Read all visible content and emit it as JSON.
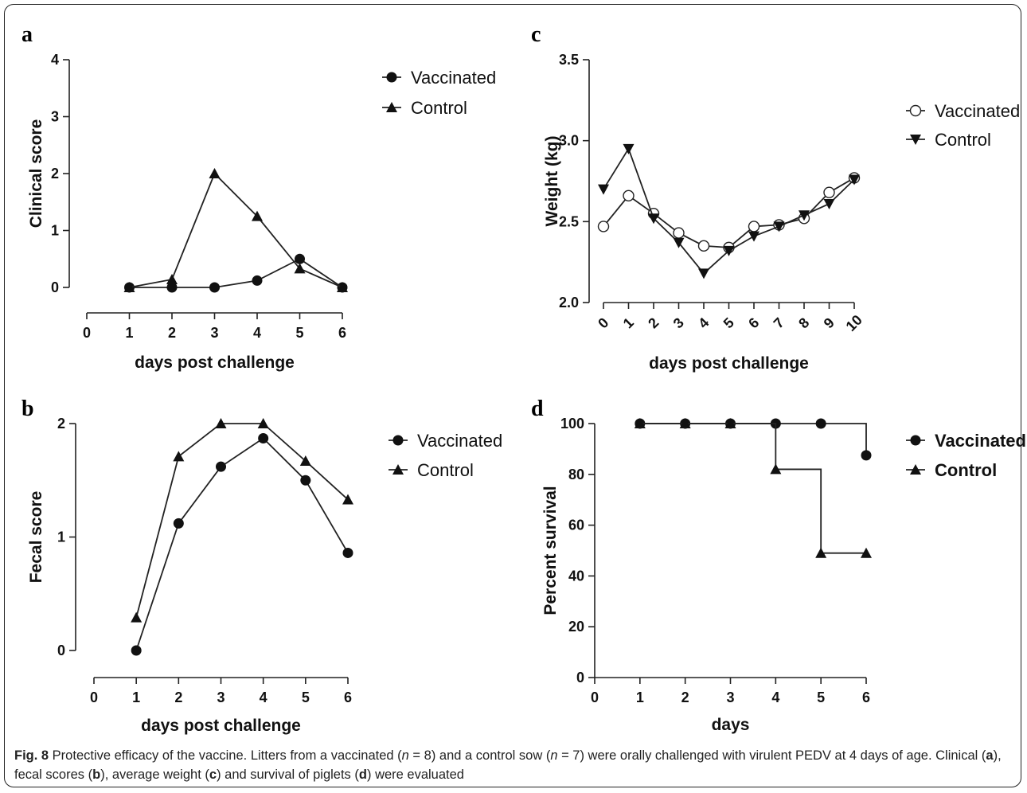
{
  "caption": {
    "fig_label": "Fig. 8",
    "p1": " Protective efficacy of the vaccine. Litters from a vaccinated (",
    "n1var": "n",
    "n1val": " = 8) and a control sow (",
    "n2var": "n",
    "n2val": " = 7) were orally challenged with virulent PEDV at 4 days of age. Clinical (",
    "a": "a",
    "p2": "), fecal scores (",
    "b": "b",
    "p3": "), average weight (",
    "c": "c",
    "p4": ") and survival of piglets (",
    "d": "d",
    "p5": ") were evaluated"
  },
  "chart_data": [
    {
      "panel": "a",
      "type": "line",
      "xlabel": "days post challenge",
      "ylabel": "Clinical score",
      "xlim": [
        0,
        6
      ],
      "ylim": [
        0,
        4
      ],
      "xticks": [
        "0",
        "1",
        "2",
        "3",
        "4",
        "5",
        "6"
      ],
      "yticks": [
        "0",
        "1",
        "2",
        "3",
        "4"
      ],
      "legend_position": "top-right",
      "legend_bold": false,
      "series": [
        {
          "name": "Vaccinated",
          "marker": "circle",
          "x": [
            1,
            2,
            3,
            4,
            5,
            6
          ],
          "values": [
            0,
            0,
            0,
            0.12,
            0.5,
            0
          ]
        },
        {
          "name": "Control",
          "marker": "triangle",
          "x": [
            1,
            2,
            3,
            4,
            5,
            6
          ],
          "values": [
            0,
            0.14,
            2.0,
            1.25,
            0.33,
            0
          ]
        }
      ]
    },
    {
      "panel": "b",
      "type": "line",
      "xlabel": "days post challenge",
      "ylabel": "Fecal score",
      "xlim": [
        0,
        6
      ],
      "ylim": [
        0,
        2
      ],
      "xticks": [
        "0",
        "1",
        "2",
        "3",
        "4",
        "5",
        "6"
      ],
      "yticks": [
        "0",
        "1",
        "2"
      ],
      "legend_position": "top-right",
      "legend_bold": false,
      "series": [
        {
          "name": "Vaccinated",
          "marker": "circle",
          "x": [
            1,
            2,
            3,
            4,
            5,
            6
          ],
          "values": [
            0,
            1.12,
            1.62,
            1.87,
            1.5,
            0.86
          ]
        },
        {
          "name": "Control",
          "marker": "triangle",
          "x": [
            1,
            2,
            3,
            4,
            5,
            6
          ],
          "values": [
            0.29,
            1.71,
            2.0,
            2.0,
            1.67,
            1.33
          ]
        }
      ]
    },
    {
      "panel": "c",
      "type": "line",
      "xlabel": "days post challenge",
      "ylabel": "Weight (kg)",
      "xlim": [
        0,
        10
      ],
      "ylim": [
        2.0,
        3.5
      ],
      "xticks": [
        "0",
        "1",
        "2",
        "3",
        "4",
        "5",
        "6",
        "7",
        "8",
        "9",
        "10"
      ],
      "yticks": [
        "2.0",
        "2.5",
        "3.0",
        "3.5"
      ],
      "rotated_xticks": true,
      "legend_position": "top-right",
      "legend_bold": false,
      "series": [
        {
          "name": "Vaccinated",
          "marker": "open-circle",
          "x": [
            0,
            1,
            2,
            3,
            4,
            5,
            6,
            7,
            8,
            9,
            10
          ],
          "values": [
            2.47,
            2.66,
            2.55,
            2.43,
            2.35,
            2.34,
            2.47,
            2.48,
            2.52,
            2.68,
            2.77
          ]
        },
        {
          "name": "Control",
          "marker": "triangle-down",
          "x": [
            0,
            1,
            2,
            3,
            4,
            5,
            6,
            7,
            8,
            9,
            10
          ],
          "values": [
            2.7,
            2.95,
            2.52,
            2.37,
            2.18,
            2.32,
            2.41,
            2.47,
            2.54,
            2.61,
            2.76
          ]
        }
      ]
    },
    {
      "panel": "d",
      "type": "line",
      "step": true,
      "xlabel": "days",
      "ylabel": "Percent survival",
      "xlim": [
        0,
        6
      ],
      "ylim": [
        0,
        100
      ],
      "xticks": [
        "0",
        "1",
        "2",
        "3",
        "4",
        "5",
        "6"
      ],
      "yticks": [
        "0",
        "20",
        "40",
        "60",
        "80",
        "100"
      ],
      "legend_position": "top-right",
      "legend_bold": true,
      "series": [
        {
          "name": "Vaccinated",
          "marker": "circle",
          "x": [
            1,
            2,
            3,
            4,
            5,
            6
          ],
          "values": [
            100,
            100,
            100,
            100,
            100,
            87.5
          ]
        },
        {
          "name": "Control",
          "marker": "triangle",
          "x": [
            1,
            2,
            3,
            4,
            5,
            6
          ],
          "values": [
            100,
            100,
            100,
            82,
            49,
            49
          ]
        }
      ]
    }
  ]
}
